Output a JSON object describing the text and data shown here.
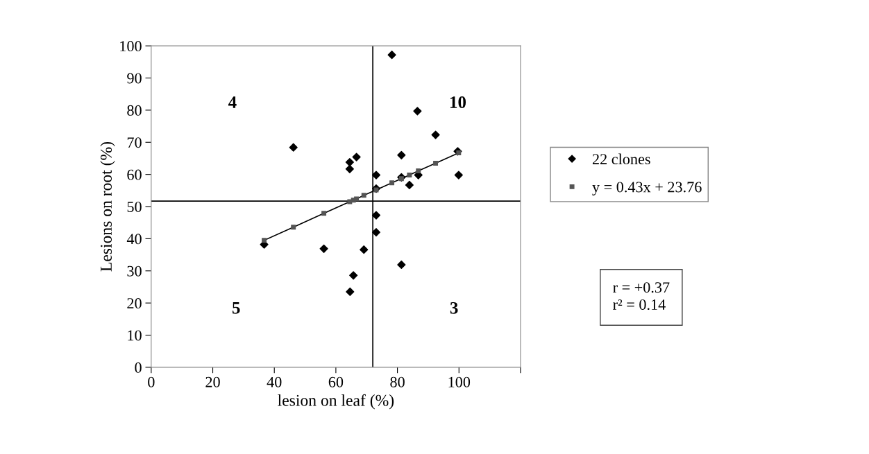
{
  "chart_data": {
    "type": "scatter",
    "xlabel": "lesion on leaf (%)",
    "ylabel": "Lesions on root (%)",
    "xlim": [
      0,
      120
    ],
    "xticks": [
      0,
      20,
      40,
      60,
      80,
      100,
      {
        "value": 120,
        "label": null
      }
    ],
    "ylim": [
      0,
      100
    ],
    "yticks": [
      0,
      10,
      20,
      30,
      40,
      50,
      60,
      70,
      80,
      90,
      100
    ],
    "grid": false,
    "legend": "right",
    "marker": "diamond",
    "series": [
      {
        "name": "22 clones",
        "color": "#000000",
        "x": [
          78.2,
          86.5,
          92.4,
          46.2,
          81.3,
          99.6,
          64.5,
          64.5,
          66.7,
          73.1,
          73.1,
          81.3,
          83.9,
          86.8,
          99.9,
          73.1,
          73.1,
          36.7,
          56.1,
          69.1,
          81.3,
          65.7,
          64.6
        ],
        "values": [
          97.2,
          79.7,
          72.3,
          68.4,
          66.0,
          67.2,
          63.8,
          61.7,
          65.4,
          59.8,
          55.6,
          59.1,
          56.7,
          59.8,
          59.8,
          47.3,
          42.0,
          38.2,
          36.9,
          36.6,
          31.9,
          28.6,
          23.5
        ]
      },
      {
        "name": "y = 0.43x + 23.76",
        "type": "line",
        "marker": "square",
        "color": "#555555",
        "x": [
          36.7,
          46.2,
          56.1,
          64.5,
          65.7,
          66.7,
          69.1,
          73.1,
          78.2,
          81.3,
          83.9,
          86.8,
          92.4,
          99.9
        ],
        "values": [
          39.5,
          43.6,
          47.9,
          51.5,
          52.0,
          52.4,
          53.5,
          55.2,
          57.4,
          58.7,
          59.8,
          61.1,
          63.5,
          66.7
        ]
      }
    ],
    "ref_lines": [
      {
        "axis": "x",
        "value": 72
      },
      {
        "axis": "y",
        "value": 51.7
      }
    ],
    "annotations": [
      "4",
      "10",
      "5",
      "3",
      "r = +0.37\nr² = 0.14"
    ]
  }
}
